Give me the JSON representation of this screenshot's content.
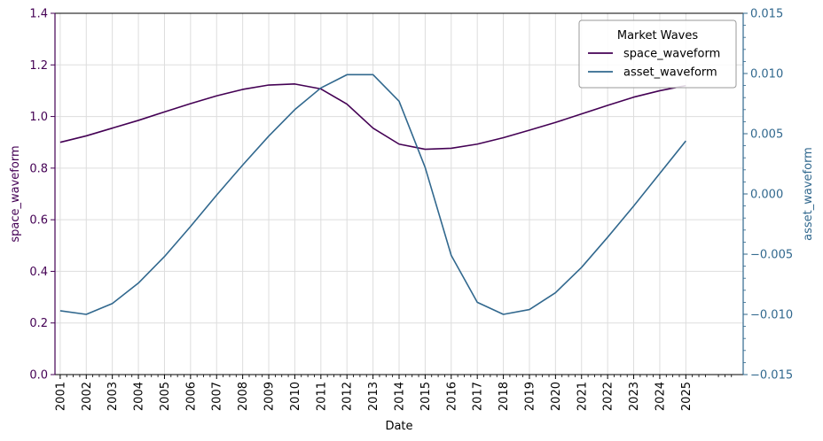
{
  "chart_data": {
    "type": "line",
    "title": "",
    "xlabel": "Date",
    "ylabel_left": "space_waveform",
    "ylabel_right": "asset_waveform",
    "grid": true,
    "legend": {
      "title": "Market Waves",
      "placement": "top-right"
    },
    "x_tick_labels": [
      "2001",
      "2002",
      "2003",
      "2004",
      "2005",
      "2006",
      "2007",
      "2008",
      "2009",
      "2010",
      "2011",
      "2012",
      "2013",
      "2014",
      "2015",
      "2016",
      "2017",
      "2018",
      "2019",
      "2020",
      "2021",
      "2022",
      "2023",
      "2024",
      "2025"
    ],
    "y_left_ticks": [
      "0.0",
      "0.2",
      "0.4",
      "0.6",
      "0.8",
      "1.0",
      "1.2",
      "1.4"
    ],
    "y_right_ticks": [
      "−0.015",
      "−0.010",
      "−0.005",
      "0.000",
      "0.005",
      "0.010",
      "0.015"
    ],
    "ylim_left": [
      0,
      1.4
    ],
    "ylim_right": [
      -0.015,
      0.015
    ],
    "xlim": [
      1999.8,
      2026.2
    ],
    "series": [
      {
        "name": "space_waveform",
        "axis": "left",
        "color": "#440154",
        "x": [
          2000.0,
          2001.0,
          2002.0,
          2003.0,
          2004.0,
          2005.0,
          2006.0,
          2007.0,
          2008.0,
          2009.0,
          2010.0,
          2011.0,
          2012.0,
          2013.0,
          2014.0,
          2015.0,
          2016.0,
          2017.0,
          2018.0,
          2019.0,
          2020.0,
          2021.0,
          2022.0,
          2023.0,
          2024.0
        ],
        "values": [
          0.9,
          0.925,
          0.955,
          0.985,
          1.018,
          1.05,
          1.08,
          1.105,
          1.122,
          1.126,
          1.107,
          1.048,
          0.955,
          0.893,
          0.873,
          0.877,
          0.893,
          0.918,
          0.947,
          0.977,
          1.01,
          1.043,
          1.075,
          1.1,
          1.12
        ]
      },
      {
        "name": "asset_waveform",
        "axis": "right",
        "color": "#31688e",
        "x": [
          2000.0,
          2001.0,
          2002.0,
          2003.0,
          2004.0,
          2005.0,
          2006.0,
          2007.0,
          2008.0,
          2009.0,
          2010.0,
          2011.0,
          2012.0,
          2013.0,
          2014.0,
          2015.0,
          2016.0,
          2017.0,
          2018.0,
          2019.0,
          2020.0,
          2021.0,
          2022.0,
          2023.0,
          2024.0
        ],
        "values": [
          -0.0097,
          -0.01,
          -0.0091,
          -0.0074,
          -0.0052,
          -0.0027,
          -0.0001,
          0.0024,
          0.0048,
          0.007,
          0.0088,
          0.0099,
          0.0099,
          0.0077,
          0.0022,
          -0.0051,
          -0.009,
          -0.01,
          -0.0096,
          -0.0082,
          -0.0061,
          -0.0036,
          -0.001,
          0.0017,
          0.0044
        ]
      }
    ]
  }
}
